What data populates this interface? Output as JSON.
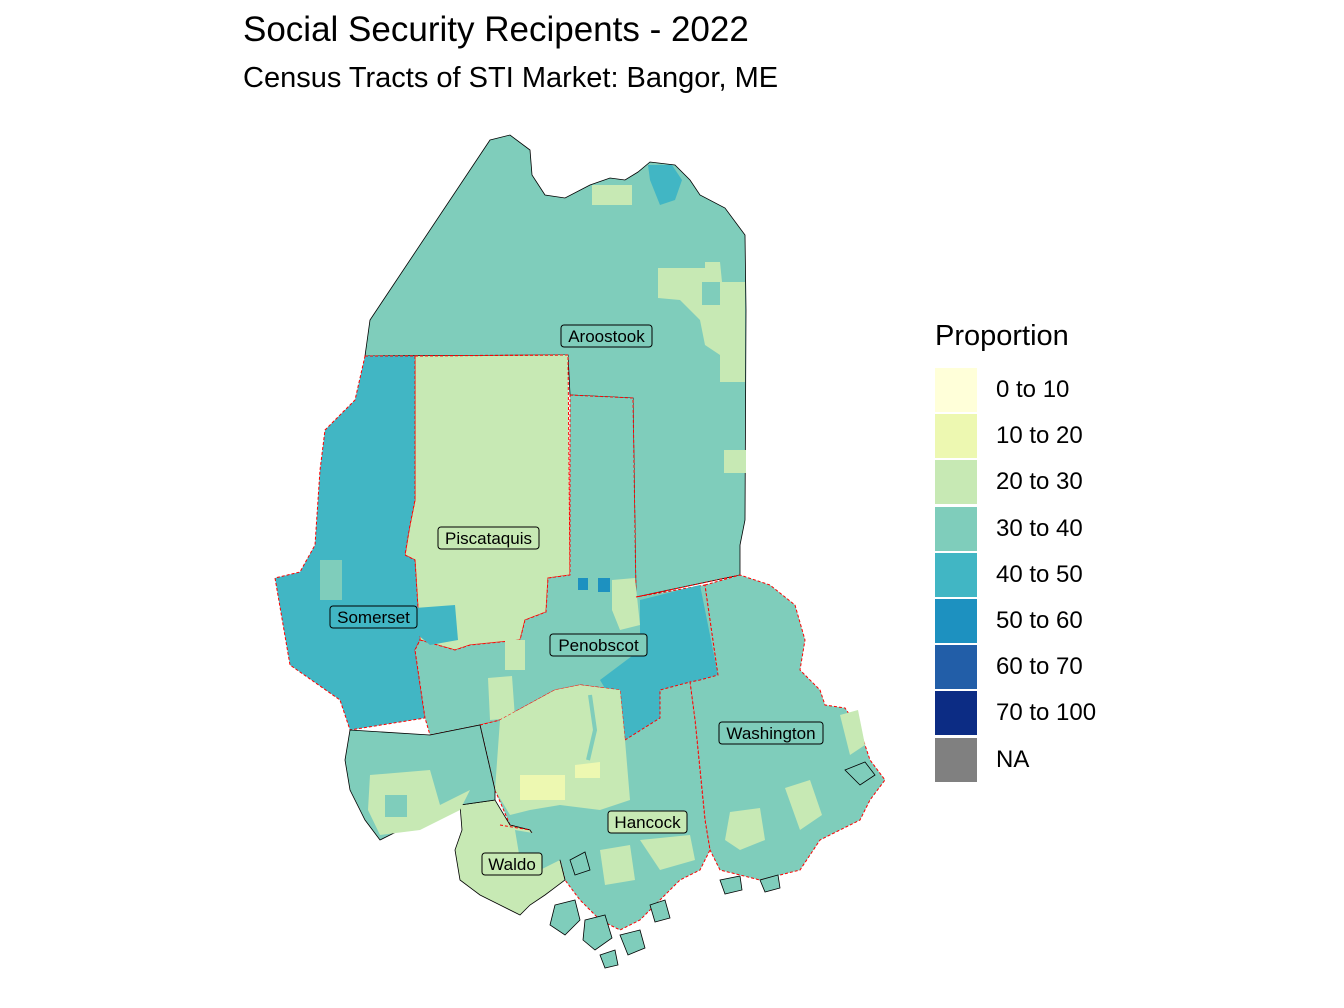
{
  "title": "Social Security Recipents - 2022",
  "subtitle": "Census Tracts of STI Market: Bangor, ME",
  "legend": {
    "title": "Proportion",
    "items": [
      {
        "label": "0 to 10",
        "color": "#ffffd9"
      },
      {
        "label": "10 to 20",
        "color": "#edf8b1"
      },
      {
        "label": "20 to 30",
        "color": "#c7e9b4"
      },
      {
        "label": "30 to 40",
        "color": "#7fcdbb"
      },
      {
        "label": "40 to 50",
        "color": "#41b6c4"
      },
      {
        "label": "50 to 60",
        "color": "#1d91c0"
      },
      {
        "label": "60 to 70",
        "color": "#225ea8"
      },
      {
        "label": "70 to 100",
        "color": "#0c2c84"
      },
      {
        "label": "NA",
        "color": "#808080"
      }
    ]
  },
  "counties": [
    {
      "name": "Aroostook",
      "proportion_class": "30 to 40"
    },
    {
      "name": "Piscataquis",
      "proportion_class": "20 to 30"
    },
    {
      "name": "Somerset",
      "proportion_class": "40 to 50"
    },
    {
      "name": "Penobscot",
      "proportion_class": "30 to 40"
    },
    {
      "name": "Washington",
      "proportion_class": "30 to 40"
    },
    {
      "name": "Hancock",
      "proportion_class": "20 to 30"
    },
    {
      "name": "Waldo",
      "proportion_class": "20 to 30"
    }
  ],
  "colors": {
    "county_border": "#ff0000",
    "outline": "#000000"
  }
}
